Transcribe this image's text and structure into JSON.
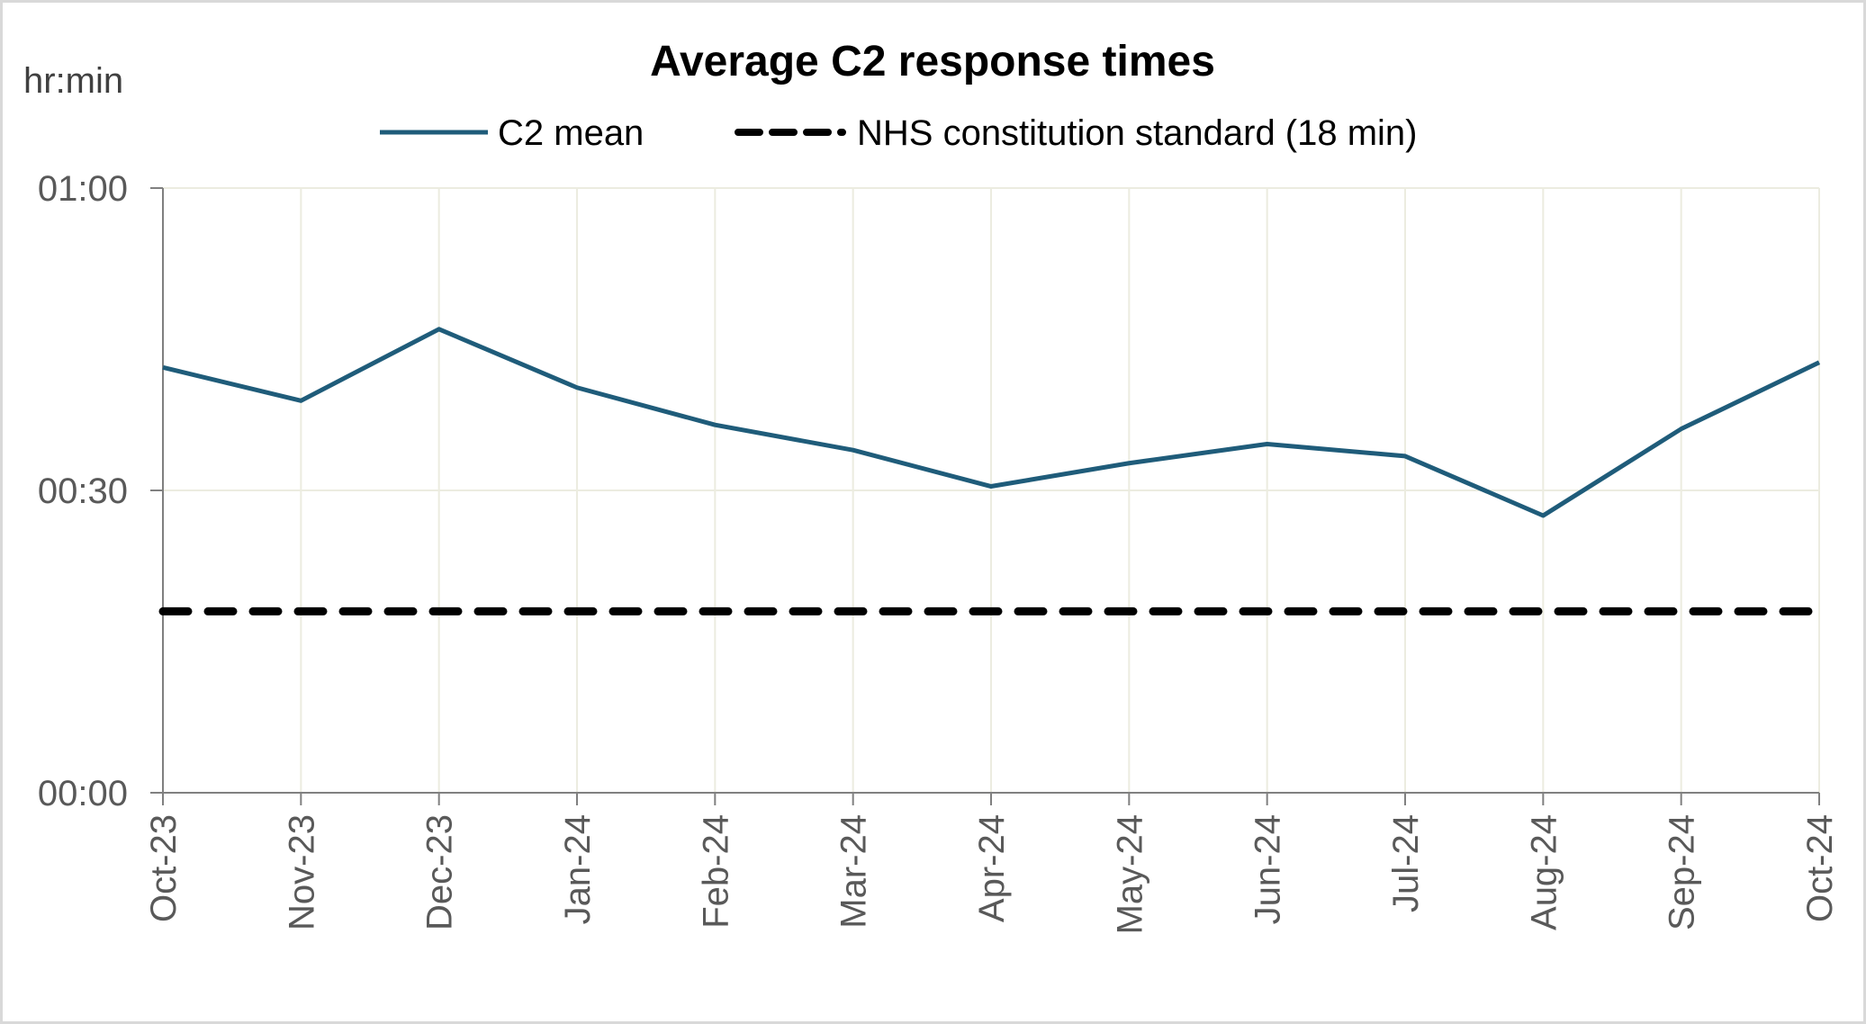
{
  "chart_data": {
    "type": "line",
    "title": "Average C2 response times",
    "ylabel": "hr:min",
    "xlabel": "",
    "categories": [
      "Oct-23",
      "Nov-23",
      "Dec-23",
      "Jan-24",
      "Feb-24",
      "Mar-24",
      "Apr-24",
      "May-24",
      "Jun-24",
      "Jul-24",
      "Aug-24",
      "Sep-24",
      "Oct-24"
    ],
    "ylim_minutes": [
      0,
      60
    ],
    "yticks": [
      {
        "value": 0,
        "label": "00:00"
      },
      {
        "value": 30,
        "label": "00:30"
      },
      {
        "value": 60,
        "label": "01:00"
      }
    ],
    "grid": true,
    "legend_position": "top",
    "series": [
      {
        "name": "C2 mean",
        "color": "#1f5c7a",
        "style": "solid",
        "values_minutes": [
          42.2,
          38.9,
          46.0,
          40.2,
          36.5,
          34.0,
          30.4,
          32.7,
          34.6,
          33.4,
          27.5,
          36.1,
          42.7
        ]
      },
      {
        "name": "NHS constitution standard (18 min)",
        "color": "#000000",
        "style": "dashed",
        "values_minutes": [
          18,
          18,
          18,
          18,
          18,
          18,
          18,
          18,
          18,
          18,
          18,
          18,
          18
        ]
      }
    ]
  }
}
